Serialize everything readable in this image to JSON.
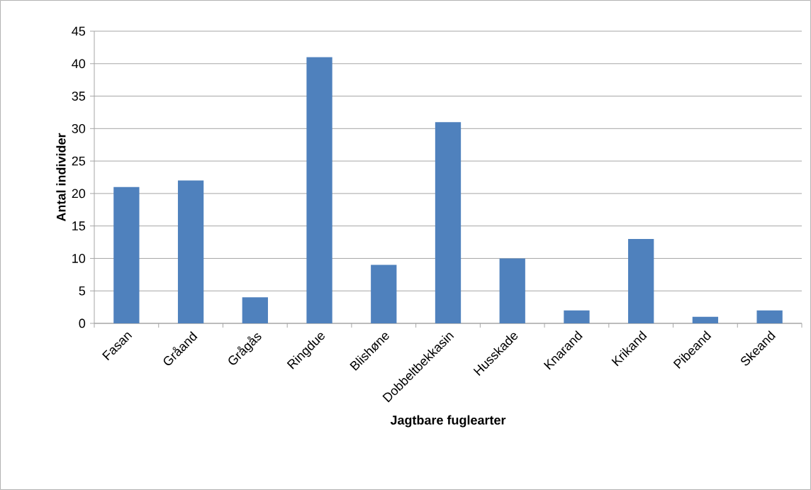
{
  "chart_data": {
    "type": "bar",
    "categories": [
      "Fasan",
      "Gråand",
      "Grågås",
      "Ringdue",
      "Blishøne",
      "Dobbeltbekkasin",
      "Husskade",
      "Knarand",
      "Krikand",
      "Pibeand",
      "Skeand"
    ],
    "values": [
      21,
      22,
      4,
      41,
      9,
      31,
      10,
      2,
      13,
      1,
      2
    ],
    "color": "#4f81bd",
    "xlabel": "Jagtbare fuglearter",
    "ylabel": "Antal individer",
    "ylim": [
      0,
      45
    ],
    "yticks": [
      0,
      5,
      10,
      15,
      20,
      25,
      30,
      35,
      40,
      45
    ],
    "grid": "y"
  }
}
